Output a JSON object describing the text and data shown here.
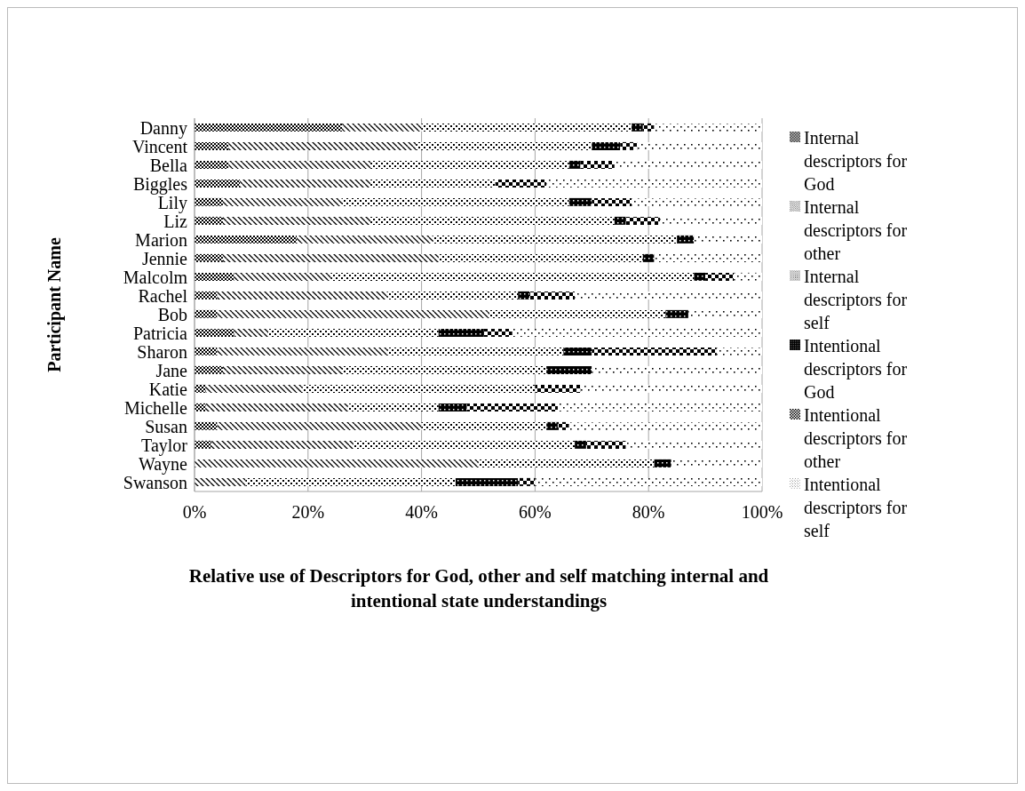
{
  "chart_data": {
    "type": "bar",
    "orientation": "horizontal",
    "stacked": true,
    "xlabel": "Relative use of Descriptors for God, other and self matching internal and intentional state understandings",
    "ylabel": "Participant Name",
    "categories": [
      "Danny",
      "Vincent",
      "Bella",
      "Biggles",
      "Lily",
      "Liz",
      "Marion",
      "Jennie",
      "Malcolm",
      "Rachel",
      "Bob",
      "Patricia",
      "Sharon",
      "Jane",
      "Katie",
      "Michelle",
      "Susan",
      "Taylor",
      "Wayne",
      "Swanson"
    ],
    "series": [
      {
        "name": "Internal descriptors for God",
        "color": "#000000",
        "values": [
          26,
          6,
          6,
          8,
          5,
          5,
          18,
          5,
          7,
          4,
          4,
          7,
          4,
          5,
          2,
          2,
          4,
          3,
          0,
          0
        ]
      },
      {
        "name": "Internal descriptors for other",
        "color": "#000000",
        "values": [
          14,
          33,
          25,
          23,
          21,
          26,
          24,
          38,
          17,
          30,
          48,
          6,
          30,
          21,
          17,
          25,
          36,
          25,
          50,
          9
        ]
      },
      {
        "name": "Internal descriptors for self",
        "color": "#000000",
        "values": [
          37,
          31,
          35,
          22,
          40,
          43,
          43,
          36,
          64,
          23,
          31,
          30,
          31,
          36,
          41,
          16,
          22,
          39,
          31,
          37
        ]
      },
      {
        "name": "Intentional descriptors for God",
        "color": "#000000",
        "values": [
          2,
          5,
          2,
          0,
          4,
          2,
          3,
          2,
          2,
          2,
          4,
          8,
          5,
          8,
          0,
          5,
          2,
          2,
          3,
          11
        ]
      },
      {
        "name": "Intentional descriptors for other",
        "color": "#000000",
        "values": [
          2,
          3,
          6,
          9,
          7,
          6,
          0,
          0,
          5,
          8,
          0,
          5,
          22,
          0,
          8,
          16,
          2,
          7,
          0,
          3
        ]
      },
      {
        "name": "Intentional descriptors for self",
        "color": "#000000",
        "values": [
          19,
          22,
          26,
          38,
          23,
          18,
          12,
          19,
          5,
          33,
          13,
          44,
          8,
          30,
          32,
          36,
          34,
          24,
          16,
          40
        ]
      }
    ],
    "xlim": [
      0,
      100
    ],
    "xticks": [
      {
        "value": 0,
        "label": "0%"
      },
      {
        "value": 20,
        "label": "20%"
      },
      {
        "value": 40,
        "label": "40%"
      },
      {
        "value": 60,
        "label": "60%"
      },
      {
        "value": 80,
        "label": "80%"
      },
      {
        "value": 100,
        "label": "100%"
      }
    ],
    "grid": "x",
    "legend": "right"
  }
}
